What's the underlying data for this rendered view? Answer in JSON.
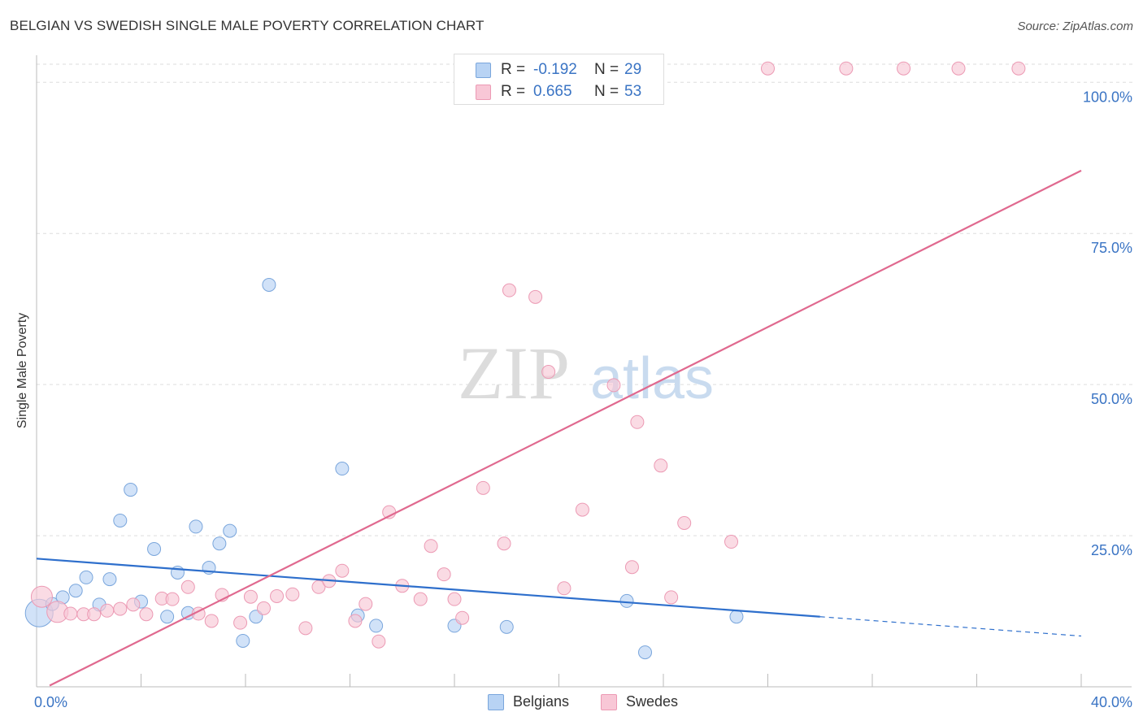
{
  "header": {
    "title": "BELGIAN VS SWEDISH SINGLE MALE POVERTY CORRELATION CHART",
    "source": "Source: ZipAtlas.com"
  },
  "watermark": {
    "zip": "ZIP",
    "atlas": "atlas"
  },
  "stats": {
    "rows": [
      {
        "r_label": "R =",
        "r_value": "-0.192",
        "n_label": "N =",
        "n_value": "29"
      },
      {
        "r_label": "R =",
        "r_value": "0.665",
        "n_label": "N =",
        "n_value": "53"
      }
    ]
  },
  "legend": {
    "items": [
      {
        "label": "Belgians"
      },
      {
        "label": "Swedes"
      }
    ]
  },
  "colors": {
    "belgian_fill": "#b8d3f4",
    "belgian_stroke": "#7aa6dc",
    "belgian_line": "#2e6fcc",
    "swede_fill": "#f8c7d6",
    "swede_stroke": "#ec9ab4",
    "swede_line": "#e0698f",
    "tick_label": "#3a74c4",
    "grid": "#dddddd"
  },
  "chart_data": {
    "type": "scatter",
    "title": "BELGIAN VS SWEDISH SINGLE MALE POVERTY CORRELATION CHART",
    "xlabel": "",
    "ylabel": "Single Male Poverty",
    "xlim": [
      0,
      40
    ],
    "ylim": [
      0,
      103
    ],
    "x_ticks": [
      {
        "value": 0,
        "label": "0.0%"
      },
      {
        "value": 40,
        "label": "40.0%"
      }
    ],
    "y_ticks": [
      {
        "value": 25,
        "label": "25.0%"
      },
      {
        "value": 50,
        "label": "50.0%"
      },
      {
        "value": 75,
        "label": "75.0%"
      },
      {
        "value": 100,
        "label": "100.0%"
      }
    ],
    "grid": true,
    "legend_position": "bottom",
    "series": [
      {
        "name": "Belgians",
        "points": [
          [
            0.1,
            12.2,
            3
          ],
          [
            0.6,
            13.7,
            1
          ],
          [
            1.0,
            14.8,
            1
          ],
          [
            1.5,
            15.9,
            1
          ],
          [
            1.9,
            18.1,
            1
          ],
          [
            2.4,
            13.6,
            1
          ],
          [
            2.8,
            17.8,
            1
          ],
          [
            3.2,
            27.5,
            1
          ],
          [
            3.6,
            32.6,
            1
          ],
          [
            4.0,
            14.1,
            1
          ],
          [
            4.5,
            22.8,
            1
          ],
          [
            5.0,
            11.6,
            1
          ],
          [
            5.4,
            18.9,
            1
          ],
          [
            5.8,
            12.2,
            1
          ],
          [
            6.1,
            26.5,
            1
          ],
          [
            6.6,
            19.7,
            1
          ],
          [
            7.0,
            23.7,
            1
          ],
          [
            7.4,
            25.8,
            1
          ],
          [
            7.9,
            7.6,
            1
          ],
          [
            8.4,
            11.6,
            1
          ],
          [
            8.9,
            66.5,
            1
          ],
          [
            11.7,
            36.1,
            1
          ],
          [
            12.3,
            11.8,
            1
          ],
          [
            13.0,
            10.1,
            1
          ],
          [
            16.0,
            10.1,
            1
          ],
          [
            18.0,
            9.9,
            1
          ],
          [
            22.6,
            14.2,
            1
          ],
          [
            23.3,
            5.7,
            1
          ],
          [
            26.8,
            11.6,
            1
          ]
        ],
        "trend": {
          "x": [
            0,
            30.0
          ],
          "y": [
            21.2,
            11.6
          ],
          "dashed_to": [
            40,
            8.4
          ]
        }
      },
      {
        "name": "Swedes",
        "points": [
          [
            0.2,
            14.9,
            2
          ],
          [
            0.8,
            12.4,
            2
          ],
          [
            1.3,
            12.1,
            1
          ],
          [
            1.8,
            12.0,
            1
          ],
          [
            2.2,
            12.0,
            1
          ],
          [
            2.7,
            12.6,
            1
          ],
          [
            3.2,
            12.9,
            1
          ],
          [
            3.7,
            13.6,
            1
          ],
          [
            4.2,
            12.0,
            1
          ],
          [
            4.8,
            14.6,
            1
          ],
          [
            5.2,
            14.5,
            1
          ],
          [
            5.8,
            16.5,
            1
          ],
          [
            6.2,
            12.1,
            1
          ],
          [
            6.7,
            10.9,
            1
          ],
          [
            7.1,
            15.2,
            1
          ],
          [
            7.8,
            10.6,
            1
          ],
          [
            8.2,
            14.9,
            1
          ],
          [
            8.7,
            13.0,
            1
          ],
          [
            9.2,
            15.0,
            1
          ],
          [
            9.8,
            15.3,
            1
          ],
          [
            10.3,
            9.7,
            1
          ],
          [
            10.8,
            16.5,
            1
          ],
          [
            11.2,
            17.5,
            1
          ],
          [
            11.7,
            19.2,
            1
          ],
          [
            12.2,
            10.9,
            1
          ],
          [
            12.6,
            13.7,
            1
          ],
          [
            13.1,
            7.5,
            1
          ],
          [
            13.5,
            28.9,
            1
          ],
          [
            14.0,
            16.7,
            1
          ],
          [
            14.7,
            14.5,
            1
          ],
          [
            15.1,
            23.3,
            1
          ],
          [
            15.6,
            18.6,
            1
          ],
          [
            16.0,
            14.5,
            1
          ],
          [
            16.3,
            11.4,
            1
          ],
          [
            17.1,
            32.9,
            1
          ],
          [
            17.9,
            23.7,
            1
          ],
          [
            18.1,
            65.6,
            1
          ],
          [
            19.1,
            64.5,
            1
          ],
          [
            19.6,
            52.1,
            1
          ],
          [
            20.2,
            16.3,
            1
          ],
          [
            20.9,
            29.3,
            1
          ],
          [
            22.1,
            49.9,
            1
          ],
          [
            22.8,
            19.8,
            1
          ],
          [
            23.0,
            43.8,
            1
          ],
          [
            23.9,
            36.6,
            1
          ],
          [
            24.3,
            14.8,
            1
          ],
          [
            24.8,
            27.1,
            1
          ],
          [
            26.6,
            24.0,
            1
          ],
          [
            28.0,
            102.3,
            1
          ],
          [
            31.0,
            102.3,
            1
          ],
          [
            33.2,
            102.3,
            1
          ],
          [
            35.3,
            102.3,
            1
          ],
          [
            37.6,
            102.3,
            1
          ]
        ],
        "trend": {
          "x": [
            0.5,
            40
          ],
          "y": [
            0.2,
            85.4
          ]
        }
      }
    ]
  }
}
